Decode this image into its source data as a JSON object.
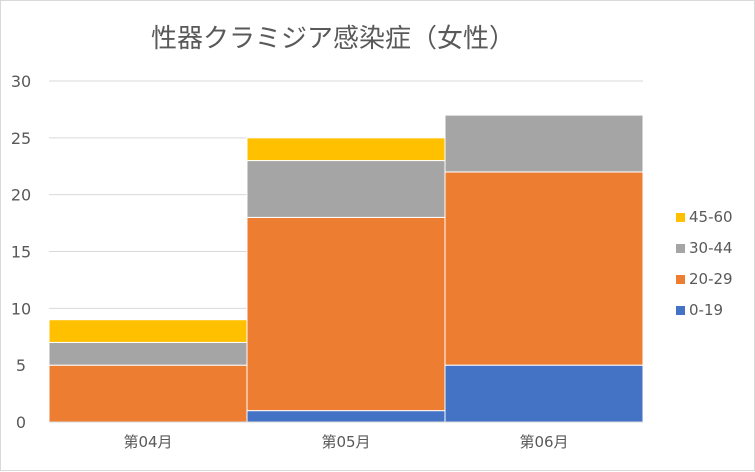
{
  "chart_data": {
    "type": "bar",
    "stacked": true,
    "title": "性器クラミジア感染症（女性）",
    "categories": [
      "第04月",
      "第05月",
      "第06月"
    ],
    "ylim": [
      0,
      30
    ],
    "yticks": [
      0,
      5,
      10,
      15,
      20,
      25,
      30
    ],
    "grid": true,
    "legend_position": "right",
    "series": [
      {
        "name": "0-19",
        "color": "#4472c4",
        "values": [
          0,
          1,
          5
        ]
      },
      {
        "name": "20-29",
        "color": "#ed7d31",
        "values": [
          5,
          17,
          17
        ]
      },
      {
        "name": "30-44",
        "color": "#a5a5a5",
        "values": [
          2,
          5,
          5
        ]
      },
      {
        "name": "45-60",
        "color": "#ffc000",
        "values": [
          2,
          2,
          0
        ]
      }
    ],
    "legend_order": [
      "45-60",
      "30-44",
      "20-29",
      "0-19"
    ]
  }
}
